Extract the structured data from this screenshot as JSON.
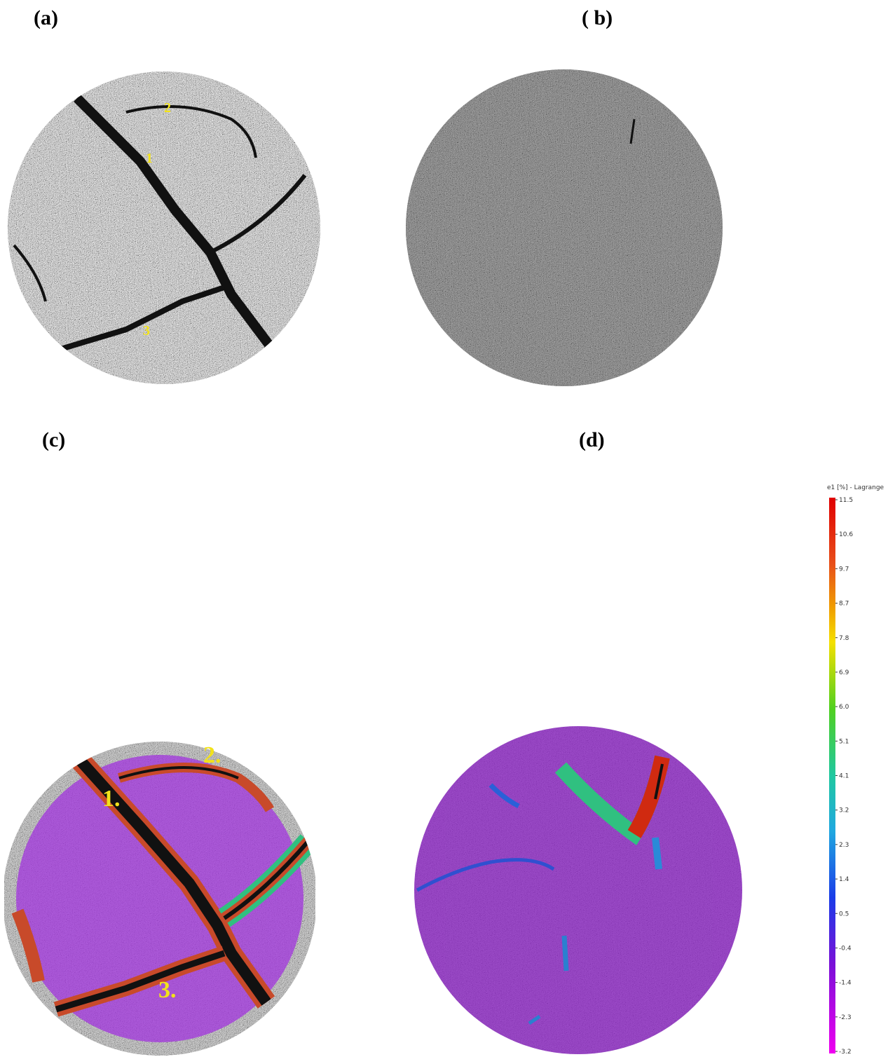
{
  "panels": {
    "a": {
      "label": "(a)",
      "cracks": [
        "1",
        "2",
        "3"
      ]
    },
    "b": {
      "label": "( b)"
    },
    "c": {
      "label": "(c)",
      "cracks": [
        "1.",
        "2.",
        "3."
      ]
    },
    "d": {
      "label": "(d)"
    }
  },
  "colorbar": {
    "title": "e1 [%] - Lagrange",
    "ticks": [
      "11.5",
      "10.6",
      "9.7",
      "8.7",
      "7.8",
      "6.9",
      "6.0",
      "5.1",
      "4.1",
      "3.2",
      "2.3",
      "1.4",
      "0.5",
      "-0.4",
      "-1.4",
      "-2.3",
      "-3.2"
    ]
  }
}
